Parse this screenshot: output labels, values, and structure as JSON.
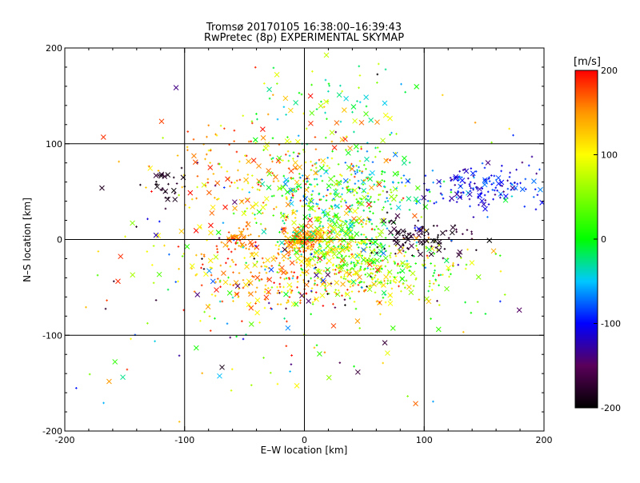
{
  "chart_data": {
    "type": "scatter",
    "title": "Tromsø 20170105 16:38:00–16:39:43",
    "subtitle": "RwPretec (8p) EXPERIMENTAL SKYMAP",
    "xlabel": "E–W location [km]",
    "ylabel": "N–S location [km]",
    "xlim": [
      -200,
      200
    ],
    "ylim": [
      -200,
      200
    ],
    "xticks": [
      -200,
      -100,
      0,
      100,
      200
    ],
    "yticks": [
      -200,
      -100,
      0,
      100,
      200
    ],
    "grid": true,
    "grid_lines": [
      -100,
      0,
      100
    ],
    "colorbar": {
      "label": "[m/s]",
      "min": -200,
      "max": 200,
      "ticks": [
        200,
        100,
        0,
        -100,
        -200
      ],
      "stops": [
        {
          "v": -200,
          "color": "#000000"
        },
        {
          "v": -150,
          "color": "#5a005a"
        },
        {
          "v": -100,
          "color": "#0000ff"
        },
        {
          "v": -50,
          "color": "#00c8ff"
        },
        {
          "v": 0,
          "color": "#00ff00"
        },
        {
          "v": 100,
          "color": "#ffff00"
        },
        {
          "v": 150,
          "color": "#ff9600"
        },
        {
          "v": 200,
          "color": "#ff0000"
        }
      ]
    },
    "markers": {
      "large": "x",
      "small": "+"
    },
    "clusters": [
      {
        "cx": 0,
        "cy": 0,
        "sx": 8,
        "sy": 6,
        "n": 140,
        "vmin": 120,
        "vmax": 200
      },
      {
        "cx": -55,
        "cy": 0,
        "sx": 8,
        "sy": 6,
        "n": 50,
        "vmin": 130,
        "vmax": 200
      },
      {
        "cx": 30,
        "cy": -2,
        "sx": 20,
        "sy": 18,
        "n": 260,
        "vmin": -40,
        "vmax": 140
      },
      {
        "cx": 60,
        "cy": -30,
        "sx": 40,
        "sy": 15,
        "n": 230,
        "vmin": -20,
        "vmax": 120
      },
      {
        "cx": 30,
        "cy": 50,
        "sx": 35,
        "sy": 22,
        "n": 300,
        "vmin": -80,
        "vmax": 80
      },
      {
        "cx": 150,
        "cy": 55,
        "sx": 25,
        "sy": 12,
        "n": 160,
        "vmin": -140,
        "vmax": -60
      },
      {
        "cx": -10,
        "cy": -40,
        "sx": 45,
        "sy": 18,
        "n": 260,
        "vmin": 90,
        "vmax": 200
      },
      {
        "cx": -30,
        "cy": 65,
        "sx": 50,
        "sy": 35,
        "n": 240,
        "vmin": 80,
        "vmax": 200
      },
      {
        "cx": 100,
        "cy": 0,
        "sx": 18,
        "sy": 10,
        "n": 90,
        "vmin": -200,
        "vmax": -160
      },
      {
        "cx": -115,
        "cy": 55,
        "sx": 8,
        "sy": 8,
        "n": 30,
        "vmin": -200,
        "vmax": -170
      },
      {
        "cx": 10,
        "cy": 140,
        "sx": 40,
        "sy": 25,
        "n": 70,
        "vmin": -60,
        "vmax": 100
      },
      {
        "cx": 0,
        "cy": -45,
        "sx": 80,
        "sy": 55,
        "n": 160,
        "vmin": -200,
        "vmax": 200
      },
      {
        "cx": 0,
        "cy": 0,
        "sx": 110,
        "sy": 110,
        "n": 150,
        "vmin": -200,
        "vmax": 200
      }
    ]
  }
}
